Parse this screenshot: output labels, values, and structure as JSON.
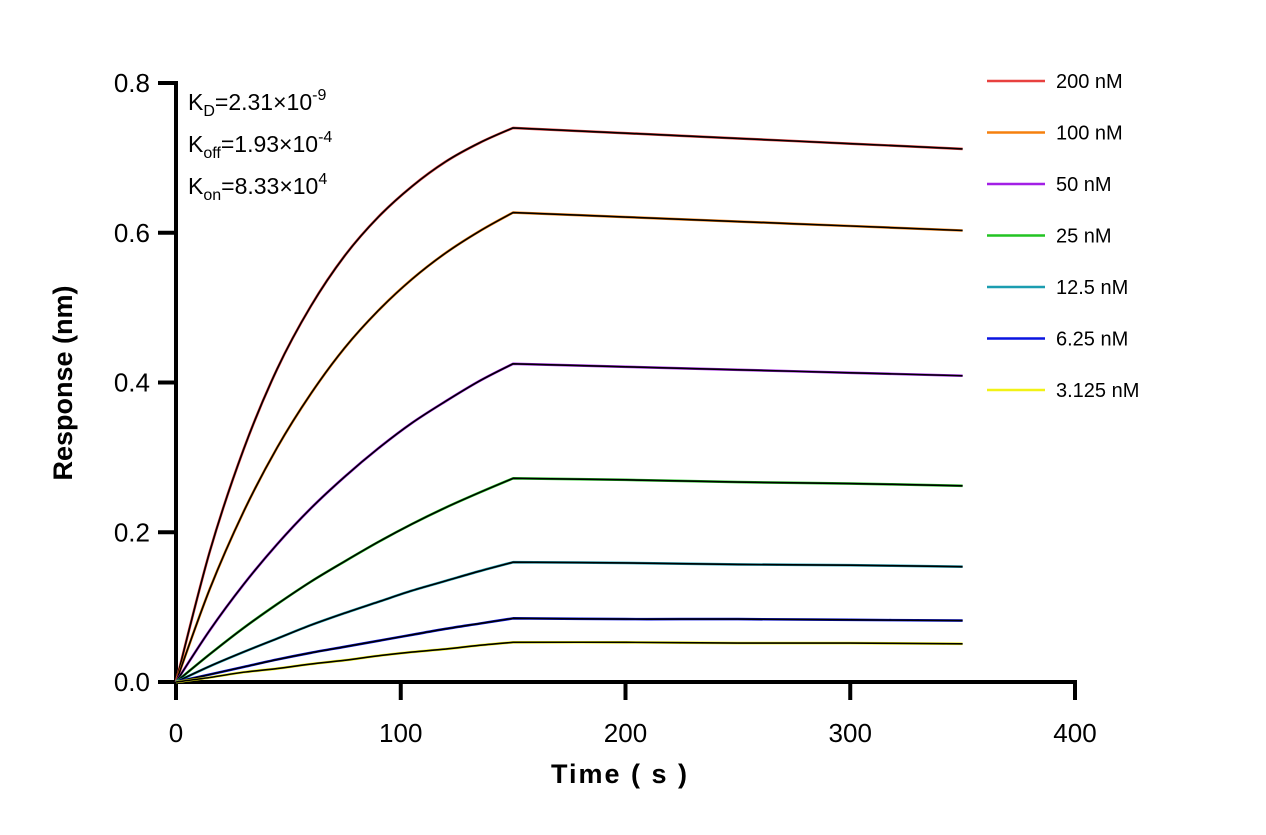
{
  "chart_data": {
    "type": "line",
    "title": "",
    "xlabel": "Time ( s )",
    "ylabel": "Response (nm)",
    "xlim": [
      0,
      400
    ],
    "ylim": [
      0,
      0.8
    ],
    "xticks": [
      "0",
      "100",
      "200",
      "300",
      "400"
    ],
    "yticks": [
      "0.0",
      "0.2",
      "0.4",
      "0.6",
      "0.8"
    ],
    "grid": false,
    "legend_position": "right",
    "annotations": [
      {
        "main": "K",
        "sub": "D",
        "text": "=2.31×10",
        "sup": "-9"
      },
      {
        "main": "K",
        "sub": "off",
        "text": "=1.93×10",
        "sup": "-4"
      },
      {
        "main": "K",
        "sub": "on",
        "text": "=8.33×10",
        "sup": "4"
      }
    ],
    "fit_color": "#000000",
    "x": [
      0,
      15,
      30,
      45,
      60,
      75,
      90,
      105,
      120,
      135,
      150,
      200,
      250,
      300,
      350
    ],
    "series": [
      {
        "name": "200 nM",
        "color": "#e8413f",
        "values": [
          0,
          0.174,
          0.31,
          0.418,
          0.502,
          0.569,
          0.621,
          0.662,
          0.695,
          0.72,
          0.74,
          0.733,
          0.726,
          0.719,
          0.712
        ]
      },
      {
        "name": "100 nM",
        "color": "#f5800f",
        "values": [
          0,
          0.124,
          0.227,
          0.313,
          0.385,
          0.446,
          0.496,
          0.538,
          0.573,
          0.602,
          0.627,
          0.621,
          0.615,
          0.609,
          0.603
        ]
      },
      {
        "name": "50 nM",
        "color": "#a21fe6",
        "values": [
          0,
          0.069,
          0.13,
          0.184,
          0.232,
          0.274,
          0.312,
          0.346,
          0.375,
          0.402,
          0.425,
          0.421,
          0.417,
          0.413,
          0.409
        ]
      },
      {
        "name": "25 nM",
        "color": "#22c322",
        "values": [
          0,
          0.037,
          0.072,
          0.104,
          0.134,
          0.161,
          0.187,
          0.211,
          0.233,
          0.253,
          0.272,
          0.27,
          0.267,
          0.265,
          0.262
        ]
      },
      {
        "name": "12.5 nM",
        "color": "#1b9db0",
        "values": [
          0,
          0.021,
          0.04,
          0.058,
          0.076,
          0.092,
          0.107,
          0.122,
          0.135,
          0.148,
          0.16,
          0.159,
          0.157,
          0.156,
          0.154
        ]
      },
      {
        "name": "6.25 nM",
        "color": "#0a14e0",
        "values": [
          0,
          0.01,
          0.02,
          0.03,
          0.039,
          0.047,
          0.055,
          0.063,
          0.071,
          0.078,
          0.085,
          0.084,
          0.084,
          0.083,
          0.082
        ]
      },
      {
        "name": "3.125 nM",
        "color": "#f2f215",
        "values": [
          0,
          0.006,
          0.013,
          0.018,
          0.024,
          0.029,
          0.035,
          0.04,
          0.044,
          0.049,
          0.053,
          0.053,
          0.052,
          0.052,
          0.051
        ]
      }
    ]
  }
}
